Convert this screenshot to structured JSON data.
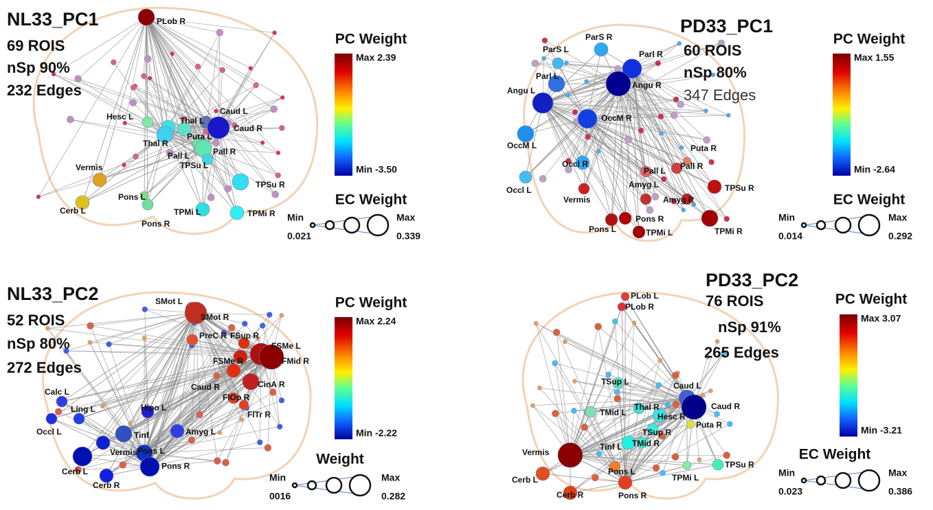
{
  "panels": [
    {
      "title": "NL33_PC1",
      "rois": "69 ROIS",
      "nsp": "nSp 90%",
      "edges": "232 Edges",
      "pc_weight": {
        "title": "PC Weight",
        "max": "Max 2.39",
        "min": "Min -3.50"
      },
      "ec_weight": {
        "title": "EC Weight",
        "min_label": "Min",
        "min": "0.021",
        "max_label": "Max",
        "max": "0.339"
      },
      "nodes": [
        {
          "label": "PLob R"
        },
        {
          "label": "Caud L"
        },
        {
          "label": "Caud R"
        },
        {
          "label": "Hesc L"
        },
        {
          "label": "Thal L"
        },
        {
          "label": "Thal R"
        },
        {
          "label": "Puta L"
        },
        {
          "label": "Pall L"
        },
        {
          "label": "Pall R"
        },
        {
          "label": "Vermis"
        },
        {
          "label": "TPSu L"
        },
        {
          "label": "TPSu R"
        },
        {
          "label": "Pons L"
        },
        {
          "label": "Pons R"
        },
        {
          "label": "TPMi L"
        },
        {
          "label": "TPMi R"
        },
        {
          "label": "Cerb L"
        }
      ]
    },
    {
      "title": "PD33_PC1",
      "rois": "60 ROIS",
      "nsp": "nSp 80%",
      "edges": "347 Edges",
      "pc_weight": {
        "title": "PC Weight",
        "max": "Max 1.55",
        "min": "Min -2.64"
      },
      "ec_weight": {
        "title": "EC Weight",
        "min_label": "Min",
        "min": "0.014",
        "max_label": "Max",
        "max": "0.292"
      },
      "nodes": [
        {
          "label": "ParS R"
        },
        {
          "label": "ParS L"
        },
        {
          "label": "Parl R"
        },
        {
          "label": "Parl L"
        },
        {
          "label": "Angu L"
        },
        {
          "label": "Angu R"
        },
        {
          "label": "OccM R"
        },
        {
          "label": "OccM L"
        },
        {
          "label": "Occl R"
        },
        {
          "label": "Occl L"
        },
        {
          "label": "Puta R"
        },
        {
          "label": "Pall L"
        },
        {
          "label": "Pall R"
        },
        {
          "label": "Amyg L"
        },
        {
          "label": "Amyg R"
        },
        {
          "label": "TPSu R"
        },
        {
          "label": "Vermis"
        },
        {
          "label": "Pons L"
        },
        {
          "label": "Pons R"
        },
        {
          "label": "TPMi L"
        },
        {
          "label": "TPMi R"
        }
      ]
    },
    {
      "title": "NL33_PC2",
      "rois": "52 ROIS",
      "nsp": "nSp 80%",
      "edges": "272 Edges",
      "pc_weight": {
        "title": "PC Weight",
        "max": "Max 2.24",
        "min": "Min -2.22"
      },
      "ec_weight": {
        "title": "Weight",
        "min_label": "Min",
        "min": "0016",
        "max_label": "Max",
        "max": "0.282"
      },
      "nodes": [
        {
          "label": "SMot L"
        },
        {
          "label": "SMot R"
        },
        {
          "label": "FSup R"
        },
        {
          "label": "FSMe L"
        },
        {
          "label": "FMid R"
        },
        {
          "label": "PreC R"
        },
        {
          "label": "FSMe R"
        },
        {
          "label": "Caud R"
        },
        {
          "label": "CinA R"
        },
        {
          "label": "FlOp R"
        },
        {
          "label": "FlTr R"
        },
        {
          "label": "Calc L"
        },
        {
          "label": "Ling L"
        },
        {
          "label": "Occl L"
        },
        {
          "label": "Hipo L"
        },
        {
          "label": "Tinf"
        },
        {
          "label": "Amyg L"
        },
        {
          "label": "Vermis"
        },
        {
          "label": "Pons L"
        },
        {
          "label": "Pons R"
        },
        {
          "label": "Cerb L"
        },
        {
          "label": "Cerb R"
        }
      ]
    },
    {
      "title": "PD33_PC2",
      "rois": "76 ROIS",
      "nsp": "nSp 91%",
      "edges": "265 Edges",
      "pc_weight": {
        "title": "PC Weight",
        "max": "Max 3.07",
        "min": "Min -3.21"
      },
      "ec_weight": {
        "title": "EC Weight",
        "min_label": "Min",
        "min": "0.023",
        "max_label": "Max",
        "max": "0.386"
      },
      "nodes": [
        {
          "label": "PLob L"
        },
        {
          "label": "PLob R"
        },
        {
          "label": "Caud L"
        },
        {
          "label": "Caud R"
        },
        {
          "label": "TSup L"
        },
        {
          "label": "Thal R"
        },
        {
          "label": "TMid L"
        },
        {
          "label": "Hesc R"
        },
        {
          "label": "TSup R"
        },
        {
          "label": "Puta R"
        },
        {
          "label": "Tinf L"
        },
        {
          "label": "TMid R"
        },
        {
          "label": "Vermis"
        },
        {
          "label": "Pons L"
        },
        {
          "label": "Pons R"
        },
        {
          "label": "Cerb L"
        },
        {
          "label": "Cerb R"
        },
        {
          "label": "TPMi L"
        },
        {
          "label": "TPSu R"
        }
      ]
    }
  ]
}
